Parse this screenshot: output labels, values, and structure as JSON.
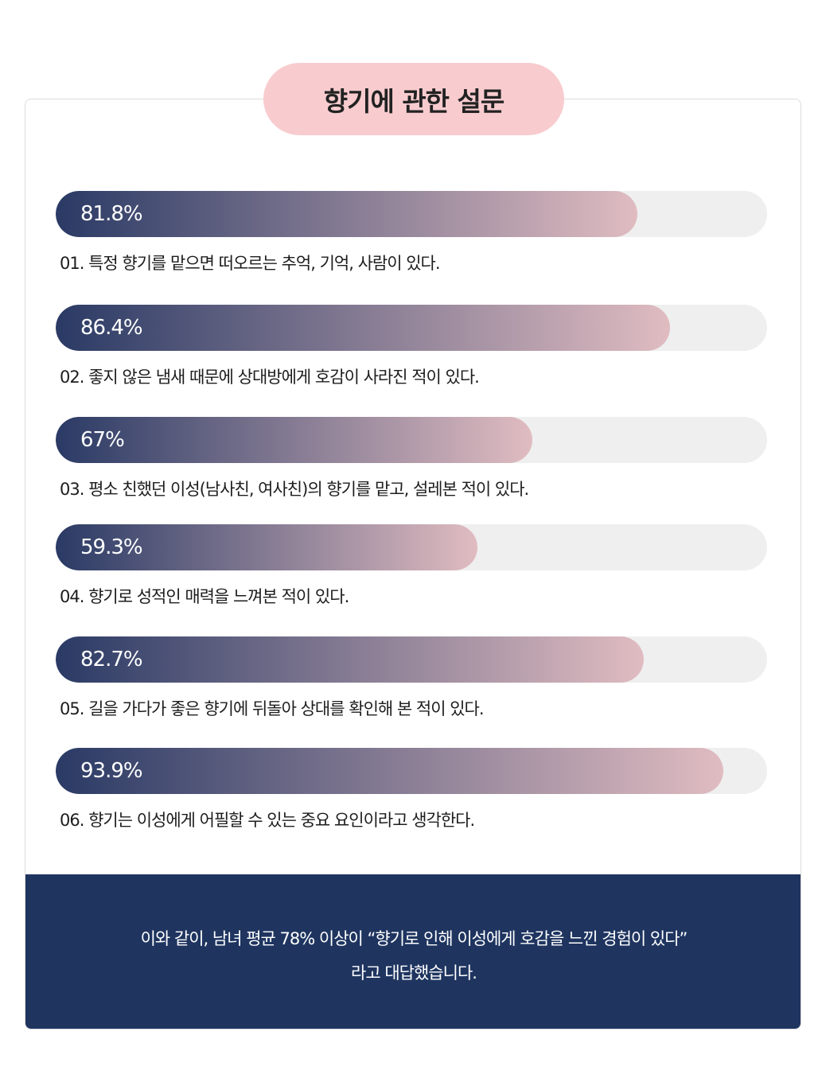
{
  "title": "향기에 관한 설문",
  "colors": {
    "bar_start": "#2a3a65",
    "bar_end": "#e0bcc1",
    "track": "#efefef",
    "title_bg": "#f8cccf",
    "footer_bg": "#1f3560"
  },
  "survey": [
    {
      "percent_label": "81.8%",
      "value": 81.8,
      "question": "01. 특정 향기를 맡으면 떠오르는 추억, 기억, 사람이 있다."
    },
    {
      "percent_label": "86.4%",
      "value": 86.4,
      "question": "02. 좋지 않은 냄새 때문에 상대방에게 호감이 사라진 적이 있다."
    },
    {
      "percent_label": "67%",
      "value": 67,
      "question": "03. 평소 친했던 이성(남사친, 여사친)의 향기를 맡고, 설레본 적이 있다."
    },
    {
      "percent_label": "59.3%",
      "value": 59.3,
      "question": "04. 향기로 성적인 매력을 느껴본 적이 있다."
    },
    {
      "percent_label": "82.7%",
      "value": 82.7,
      "question": "05. 길을 가다가 좋은 향기에 뒤돌아 상대를 확인해 본 적이 있다."
    },
    {
      "percent_label": "93.9%",
      "value": 93.9,
      "question": "06. 향기는 이성에게 어필할 수 있는 중요 요인이라고 생각한다."
    }
  ],
  "footer": {
    "line1": "이와 같이, 남녀 평균 78% 이상이 “향기로 인해 이성에게 호감을 느낀 경험이 있다”",
    "line2": "라고 대답했습니다."
  }
}
